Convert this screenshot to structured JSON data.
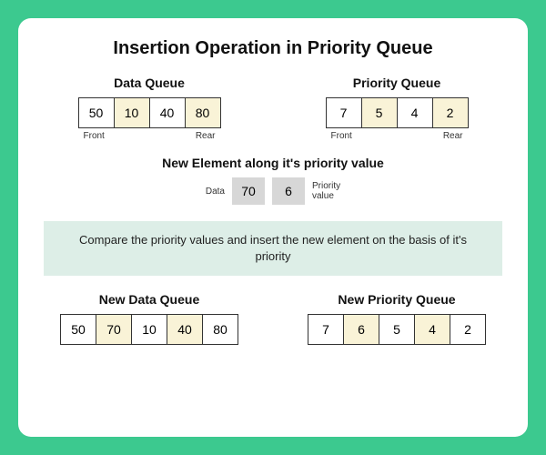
{
  "title": "Insertion Operation in Priority Queue",
  "colors": {
    "outer_bg": "#3cc98f",
    "card_bg": "#ffffff",
    "cell_border": "#333333",
    "highlight_bg": "#f9f3d7",
    "gray_cell_bg": "#d7d7d7",
    "explain_bg": "#ddeee7"
  },
  "data_queue": {
    "title": "Data Queue",
    "cells": [
      "50",
      "10",
      "40",
      "80"
    ],
    "highlight_idx": [
      1,
      3
    ],
    "front_label": "Front",
    "rear_label": "Rear"
  },
  "priority_queue": {
    "title": "Priority Queue",
    "cells": [
      "7",
      "5",
      "4",
      "2"
    ],
    "highlight_idx": [
      1,
      3
    ],
    "front_label": "Front",
    "rear_label": "Rear"
  },
  "new_element": {
    "title": "New Element along it's priority value",
    "data_label": "Data",
    "data_value": "70",
    "priority_value": "6",
    "priority_label_line1": "Priority",
    "priority_label_line2": "value"
  },
  "explain_text": "Compare the priority values and insert the new element on the basis of it's priority",
  "new_data_queue": {
    "title": "New Data Queue",
    "cells": [
      "50",
      "70",
      "10",
      "40",
      "80"
    ],
    "highlight_idx": [
      1,
      3
    ]
  },
  "new_priority_queue": {
    "title": "New Priority Queue",
    "cells": [
      "7",
      "6",
      "5",
      "4",
      "2"
    ],
    "highlight_idx": [
      1,
      3
    ]
  }
}
